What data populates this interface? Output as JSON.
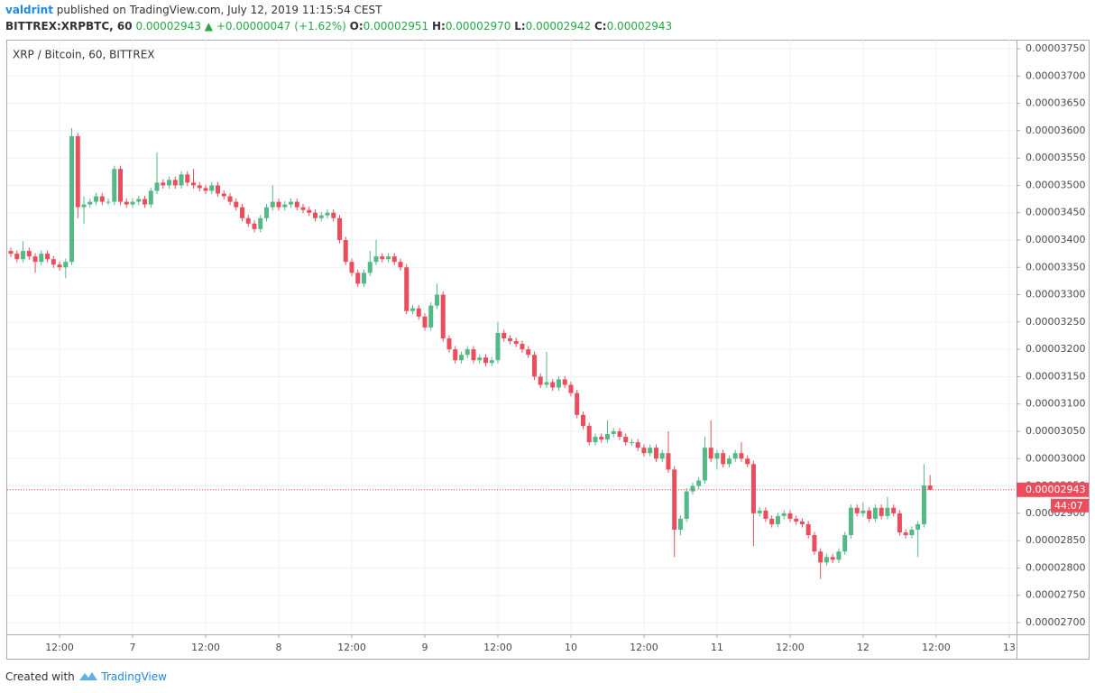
{
  "header": {
    "author": "valdrint",
    "published": "published on TradingView.com, July 12, 2019 11:15:54 CEST",
    "symbol": "BITTREX:XRPBTC, 60",
    "last": "0.00002943",
    "arrow": "▲",
    "change": "+0.00000047 (+1.62%)",
    "o_label": "O:",
    "o_value": "0.00002951",
    "h_label": "H:",
    "h_value": "0.00002970",
    "l_label": "L:",
    "l_value": "0.00002942",
    "c_label": "C:",
    "c_value": "0.00002943"
  },
  "footer": {
    "created": "Created with",
    "brand": "TradingView"
  },
  "chart_data": {
    "type": "candlestick",
    "title": "XRP / Bitcoin, 60, BITTREX",
    "up_color": "#53b987",
    "down_color": "#eb4d5c",
    "grid": true,
    "last_price": {
      "value": 2.943e-05,
      "label": "0.00002943"
    },
    "countdown": "44:07",
    "xlim": [
      3.4,
      169.2
    ],
    "xticks": [
      {
        "value": 12,
        "label": "12:00"
      },
      {
        "value": 24,
        "label": "7"
      },
      {
        "value": 36,
        "label": "12:00"
      },
      {
        "value": 48,
        "label": "8"
      },
      {
        "value": 60,
        "label": "12:00"
      },
      {
        "value": 72,
        "label": "9"
      },
      {
        "value": 84,
        "label": "12:00"
      },
      {
        "value": 96,
        "label": "10"
      },
      {
        "value": 108,
        "label": "12:00"
      },
      {
        "value": 120,
        "label": "11"
      },
      {
        "value": 132,
        "label": "12:00"
      },
      {
        "value": 144,
        "label": "12"
      },
      {
        "value": 156,
        "label": "12:00"
      },
      {
        "value": 168,
        "label": "13"
      }
    ],
    "ylim": [
      2.6785e-05,
      3.7665e-05
    ],
    "yticks": [
      {
        "value": 2.7e-05,
        "label": "0.00002700"
      },
      {
        "value": 2.75e-05,
        "label": "0.00002750"
      },
      {
        "value": 2.8e-05,
        "label": "0.00002800"
      },
      {
        "value": 2.85e-05,
        "label": "0.00002850"
      },
      {
        "value": 2.9e-05,
        "label": "0.00002900"
      },
      {
        "value": 2.95e-05,
        "label": "0.00002950"
      },
      {
        "value": 3e-05,
        "label": "0.00003000"
      },
      {
        "value": 3.05e-05,
        "label": "0.00003050"
      },
      {
        "value": 3.1e-05,
        "label": "0.00003100"
      },
      {
        "value": 3.15e-05,
        "label": "0.00003150"
      },
      {
        "value": 3.2e-05,
        "label": "0.00003200"
      },
      {
        "value": 3.25e-05,
        "label": "0.00003250"
      },
      {
        "value": 3.3e-05,
        "label": "0.00003300"
      },
      {
        "value": 3.35e-05,
        "label": "0.00003350"
      },
      {
        "value": 3.4e-05,
        "label": "0.00003400"
      },
      {
        "value": 3.45e-05,
        "label": "0.00003450"
      },
      {
        "value": 3.5e-05,
        "label": "0.00003500"
      },
      {
        "value": 3.55e-05,
        "label": "0.00003550"
      },
      {
        "value": 3.6e-05,
        "label": "0.00003600"
      },
      {
        "value": 3.65e-05,
        "label": "0.00003650"
      },
      {
        "value": 3.7e-05,
        "label": "0.00003700"
      },
      {
        "value": 3.75e-05,
        "label": "0.00003750"
      }
    ],
    "x": [
      4,
      5,
      6,
      7,
      8,
      9,
      10,
      11,
      12,
      13,
      14,
      15,
      16,
      17,
      18,
      19,
      20,
      21,
      22,
      23,
      24,
      25,
      26,
      27,
      28,
      29,
      30,
      31,
      32,
      33,
      34,
      35,
      36,
      37,
      38,
      39,
      40,
      41,
      42,
      43,
      44,
      45,
      46,
      47,
      48,
      49,
      50,
      51,
      52,
      53,
      54,
      55,
      56,
      57,
      58,
      59,
      60,
      61,
      62,
      63,
      64,
      65,
      66,
      67,
      68,
      69,
      70,
      71,
      72,
      73,
      74,
      75,
      76,
      77,
      78,
      79,
      80,
      81,
      82,
      83,
      84,
      85,
      86,
      87,
      88,
      89,
      90,
      91,
      92,
      93,
      94,
      95,
      96,
      97,
      98,
      99,
      100,
      101,
      102,
      103,
      104,
      105,
      106,
      107,
      108,
      109,
      110,
      111,
      112,
      113,
      114,
      115,
      116,
      117,
      118,
      119,
      120,
      121,
      122,
      123,
      124,
      125,
      126,
      127,
      128,
      129,
      130,
      131,
      132,
      133,
      134,
      135,
      136,
      137,
      138,
      139,
      140,
      141,
      142,
      143,
      144,
      145,
      146,
      147,
      148,
      149,
      150,
      151,
      152,
      153,
      154,
      155
    ],
    "open": [
      3.38e-05,
      3.375e-05,
      3.365e-05,
      3.38e-05,
      3.37e-05,
      3.36e-05,
      3.375e-05,
      3.365e-05,
      3.355e-05,
      3.35e-05,
      3.36e-05,
      3.59e-05,
      3.46e-05,
      3.465e-05,
      3.47e-05,
      3.48e-05,
      3.47e-05,
      3.47e-05,
      3.53e-05,
      3.47e-05,
      3.465e-05,
      3.47e-05,
      3.475e-05,
      3.465e-05,
      3.49e-05,
      3.505e-05,
      3.5e-05,
      3.51e-05,
      3.5e-05,
      3.52e-05,
      3.505e-05,
      3.5e-05,
      3.495e-05,
      3.49e-05,
      3.5e-05,
      3.485e-05,
      3.48e-05,
      3.47e-05,
      3.46e-05,
      3.44e-05,
      3.43e-05,
      3.42e-05,
      3.44e-05,
      3.46e-05,
      3.47e-05,
      3.46e-05,
      3.465e-05,
      3.47e-05,
      3.46e-05,
      3.455e-05,
      3.45e-05,
      3.44e-05,
      3.445e-05,
      3.45e-05,
      3.44e-05,
      3.4e-05,
      3.36e-05,
      3.34e-05,
      3.32e-05,
      3.34e-05,
      3.36e-05,
      3.37e-05,
      3.365e-05,
      3.37e-05,
      3.36e-05,
      3.35e-05,
      3.27e-05,
      3.275e-05,
      3.26e-05,
      3.24e-05,
      3.28e-05,
      3.3e-05,
      3.22e-05,
      3.2e-05,
      3.18e-05,
      3.19e-05,
      3.2e-05,
      3.18e-05,
      3.185e-05,
      3.175e-05,
      3.18e-05,
      3.23e-05,
      3.22e-05,
      3.215e-05,
      3.21e-05,
      3.2e-05,
      3.19e-05,
      3.15e-05,
      3.135e-05,
      3.14e-05,
      3.13e-05,
      3.145e-05,
      3.135e-05,
      3.12e-05,
      3.08e-05,
      3.06e-05,
      3.03e-05,
      3.04e-05,
      3.035e-05,
      3.045e-05,
      3.05e-05,
      3.04e-05,
      3.03e-05,
      3.03e-05,
      3.02e-05,
      3.01e-05,
      3.02e-05,
      3e-05,
      3.01e-05,
      2.98e-05,
      2.87e-05,
      2.89e-05,
      2.94e-05,
      2.95e-05,
      2.96e-05,
      3.02e-05,
      3e-05,
      3.01e-05,
      2.99e-05,
      3e-05,
      3.01e-05,
      3e-05,
      2.99e-05,
      2.9e-05,
      2.905e-05,
      2.89e-05,
      2.88e-05,
      2.895e-05,
      2.9e-05,
      2.89e-05,
      2.885e-05,
      2.88e-05,
      2.86e-05,
      2.83e-05,
      2.81e-05,
      2.82e-05,
      2.815e-05,
      2.83e-05,
      2.86e-05,
      2.91e-05,
      2.9e-05,
      2.905e-05,
      2.89e-05,
      2.91e-05,
      2.895e-05,
      2.91e-05,
      2.9e-05,
      2.865e-05,
      2.86e-05,
      2.87e-05,
      2.88e-05,
      2.951e-05
    ],
    "high": [
      3.386e-05,
      3.381e-05,
      3.398e-05,
      3.386e-05,
      3.376e-05,
      3.381e-05,
      3.381e-05,
      3.371e-05,
      3.361e-05,
      3.366e-05,
      3.605e-05,
      3.596e-05,
      3.48e-05,
      3.476e-05,
      3.486e-05,
      3.486e-05,
      3.476e-05,
      3.536e-05,
      3.536e-05,
      3.476e-05,
      3.476e-05,
      3.481e-05,
      3.481e-05,
      3.496e-05,
      3.56e-05,
      3.511e-05,
      3.516e-05,
      3.516e-05,
      3.526e-05,
      3.526e-05,
      3.53e-05,
      3.506e-05,
      3.501e-05,
      3.506e-05,
      3.506e-05,
      3.491e-05,
      3.486e-05,
      3.476e-05,
      3.466e-05,
      3.446e-05,
      3.436e-05,
      3.446e-05,
      3.466e-05,
      3.5e-05,
      3.476e-05,
      3.471e-05,
      3.476e-05,
      3.476e-05,
      3.466e-05,
      3.461e-05,
      3.456e-05,
      3.451e-05,
      3.456e-05,
      3.456e-05,
      3.446e-05,
      3.406e-05,
      3.366e-05,
      3.346e-05,
      3.346e-05,
      3.38e-05,
      3.4e-05,
      3.376e-05,
      3.376e-05,
      3.376e-05,
      3.366e-05,
      3.356e-05,
      3.281e-05,
      3.281e-05,
      3.266e-05,
      3.286e-05,
      3.32e-05,
      3.306e-05,
      3.226e-05,
      3.206e-05,
      3.196e-05,
      3.206e-05,
      3.206e-05,
      3.191e-05,
      3.191e-05,
      3.186e-05,
      3.25e-05,
      3.236e-05,
      3.226e-05,
      3.221e-05,
      3.216e-05,
      3.206e-05,
      3.196e-05,
      3.156e-05,
      3.195e-05,
      3.146e-05,
      3.151e-05,
      3.151e-05,
      3.141e-05,
      3.126e-05,
      3.086e-05,
      3.066e-05,
      3.046e-05,
      3.046e-05,
      3.07e-05,
      3.056e-05,
      3.056e-05,
      3.046e-05,
      3.036e-05,
      3.036e-05,
      3.026e-05,
      3.026e-05,
      3.026e-05,
      3.016e-05,
      3.05e-05,
      2.986e-05,
      2.896e-05,
      2.946e-05,
      2.956e-05,
      2.966e-05,
      3.04e-05,
      3.07e-05,
      3.016e-05,
      3.016e-05,
      3.006e-05,
      3.016e-05,
      3.03e-05,
      3.006e-05,
      2.996e-05,
      2.911e-05,
      2.911e-05,
      2.896e-05,
      2.901e-05,
      2.906e-05,
      2.906e-05,
      2.896e-05,
      2.891e-05,
      2.886e-05,
      2.866e-05,
      2.836e-05,
      2.826e-05,
      2.826e-05,
      2.836e-05,
      2.866e-05,
      2.916e-05,
      2.916e-05,
      2.92e-05,
      2.911e-05,
      2.916e-05,
      2.916e-05,
      2.93e-05,
      2.916e-05,
      2.906e-05,
      2.871e-05,
      2.876e-05,
      2.886e-05,
      2.99e-05,
      2.97e-05
    ],
    "low": [
      3.369e-05,
      3.359e-05,
      3.359e-05,
      3.364e-05,
      3.34e-05,
      3.354e-05,
      3.359e-05,
      3.349e-05,
      3.344e-05,
      3.33e-05,
      3.354e-05,
      3.44e-05,
      3.43e-05,
      3.459e-05,
      3.464e-05,
      3.464e-05,
      3.464e-05,
      3.464e-05,
      3.464e-05,
      3.459e-05,
      3.459e-05,
      3.464e-05,
      3.459e-05,
      3.459e-05,
      3.484e-05,
      3.494e-05,
      3.494e-05,
      3.494e-05,
      3.494e-05,
      3.499e-05,
      3.494e-05,
      3.489e-05,
      3.484e-05,
      3.484e-05,
      3.479e-05,
      3.474e-05,
      3.464e-05,
      3.454e-05,
      3.434e-05,
      3.424e-05,
      3.414e-05,
      3.414e-05,
      3.434e-05,
      3.454e-05,
      3.454e-05,
      3.454e-05,
      3.459e-05,
      3.454e-05,
      3.449e-05,
      3.444e-05,
      3.434e-05,
      3.434e-05,
      3.439e-05,
      3.434e-05,
      3.394e-05,
      3.354e-05,
      3.334e-05,
      3.314e-05,
      3.314e-05,
      3.334e-05,
      3.354e-05,
      3.359e-05,
      3.359e-05,
      3.354e-05,
      3.344e-05,
      3.264e-05,
      3.264e-05,
      3.254e-05,
      3.234e-05,
      3.234e-05,
      3.274e-05,
      3.214e-05,
      3.194e-05,
      3.174e-05,
      3.174e-05,
      3.184e-05,
      3.174e-05,
      3.174e-05,
      3.169e-05,
      3.169e-05,
      3.174e-05,
      3.214e-05,
      3.209e-05,
      3.204e-05,
      3.194e-05,
      3.184e-05,
      3.144e-05,
      3.129e-05,
      3.129e-05,
      3.124e-05,
      3.124e-05,
      3.129e-05,
      3.114e-05,
      3.074e-05,
      3.054e-05,
      3.024e-05,
      3.024e-05,
      3.029e-05,
      3.029e-05,
      3.039e-05,
      3.034e-05,
      3.024e-05,
      3.024e-05,
      3.014e-05,
      3.004e-05,
      3.004e-05,
      2.994e-05,
      2.994e-05,
      2.974e-05,
      2.82e-05,
      2.86e-05,
      2.884e-05,
      2.934e-05,
      2.944e-05,
      2.954e-05,
      2.994e-05,
      2.98e-05,
      2.984e-05,
      2.984e-05,
      2.994e-05,
      2.994e-05,
      2.984e-05,
      2.84e-05,
      2.894e-05,
      2.884e-05,
      2.874e-05,
      2.874e-05,
      2.889e-05,
      2.884e-05,
      2.879e-05,
      2.874e-05,
      2.854e-05,
      2.824e-05,
      2.78e-05,
      2.804e-05,
      2.809e-05,
      2.809e-05,
      2.824e-05,
      2.854e-05,
      2.894e-05,
      2.894e-05,
      2.884e-05,
      2.884e-05,
      2.889e-05,
      2.889e-05,
      2.894e-05,
      2.859e-05,
      2.854e-05,
      2.854e-05,
      2.82e-05,
      2.874e-05,
      2.942e-05
    ],
    "close": [
      3.375e-05,
      3.365e-05,
      3.38e-05,
      3.37e-05,
      3.36e-05,
      3.375e-05,
      3.365e-05,
      3.355e-05,
      3.35e-05,
      3.36e-05,
      3.59e-05,
      3.46e-05,
      3.465e-05,
      3.47e-05,
      3.48e-05,
      3.47e-05,
      3.47e-05,
      3.53e-05,
      3.47e-05,
      3.465e-05,
      3.47e-05,
      3.475e-05,
      3.465e-05,
      3.49e-05,
      3.505e-05,
      3.5e-05,
      3.51e-05,
      3.5e-05,
      3.52e-05,
      3.505e-05,
      3.5e-05,
      3.495e-05,
      3.49e-05,
      3.5e-05,
      3.485e-05,
      3.48e-05,
      3.47e-05,
      3.46e-05,
      3.44e-05,
      3.43e-05,
      3.42e-05,
      3.44e-05,
      3.46e-05,
      3.47e-05,
      3.46e-05,
      3.465e-05,
      3.47e-05,
      3.46e-05,
      3.455e-05,
      3.45e-05,
      3.44e-05,
      3.445e-05,
      3.45e-05,
      3.44e-05,
      3.4e-05,
      3.36e-05,
      3.34e-05,
      3.32e-05,
      3.34e-05,
      3.36e-05,
      3.37e-05,
      3.365e-05,
      3.37e-05,
      3.36e-05,
      3.35e-05,
      3.27e-05,
      3.275e-05,
      3.26e-05,
      3.24e-05,
      3.28e-05,
      3.3e-05,
      3.22e-05,
      3.2e-05,
      3.18e-05,
      3.19e-05,
      3.2e-05,
      3.18e-05,
      3.185e-05,
      3.175e-05,
      3.18e-05,
      3.23e-05,
      3.22e-05,
      3.215e-05,
      3.21e-05,
      3.2e-05,
      3.19e-05,
      3.15e-05,
      3.135e-05,
      3.14e-05,
      3.13e-05,
      3.145e-05,
      3.135e-05,
      3.12e-05,
      3.08e-05,
      3.06e-05,
      3.03e-05,
      3.04e-05,
      3.035e-05,
      3.045e-05,
      3.05e-05,
      3.04e-05,
      3.03e-05,
      3.03e-05,
      3.02e-05,
      3.01e-05,
      3.02e-05,
      3e-05,
      3.01e-05,
      2.98e-05,
      2.87e-05,
      2.89e-05,
      2.94e-05,
      2.95e-05,
      2.96e-05,
      3.02e-05,
      3e-05,
      3.01e-05,
      2.99e-05,
      3e-05,
      3.01e-05,
      3e-05,
      2.99e-05,
      2.9e-05,
      2.905e-05,
      2.89e-05,
      2.88e-05,
      2.895e-05,
      2.9e-05,
      2.89e-05,
      2.885e-05,
      2.88e-05,
      2.86e-05,
      2.83e-05,
      2.81e-05,
      2.82e-05,
      2.815e-05,
      2.83e-05,
      2.86e-05,
      2.91e-05,
      2.9e-05,
      2.905e-05,
      2.89e-05,
      2.91e-05,
      2.895e-05,
      2.91e-05,
      2.9e-05,
      2.865e-05,
      2.86e-05,
      2.87e-05,
      2.88e-05,
      2.951e-05,
      2.943e-05
    ]
  }
}
